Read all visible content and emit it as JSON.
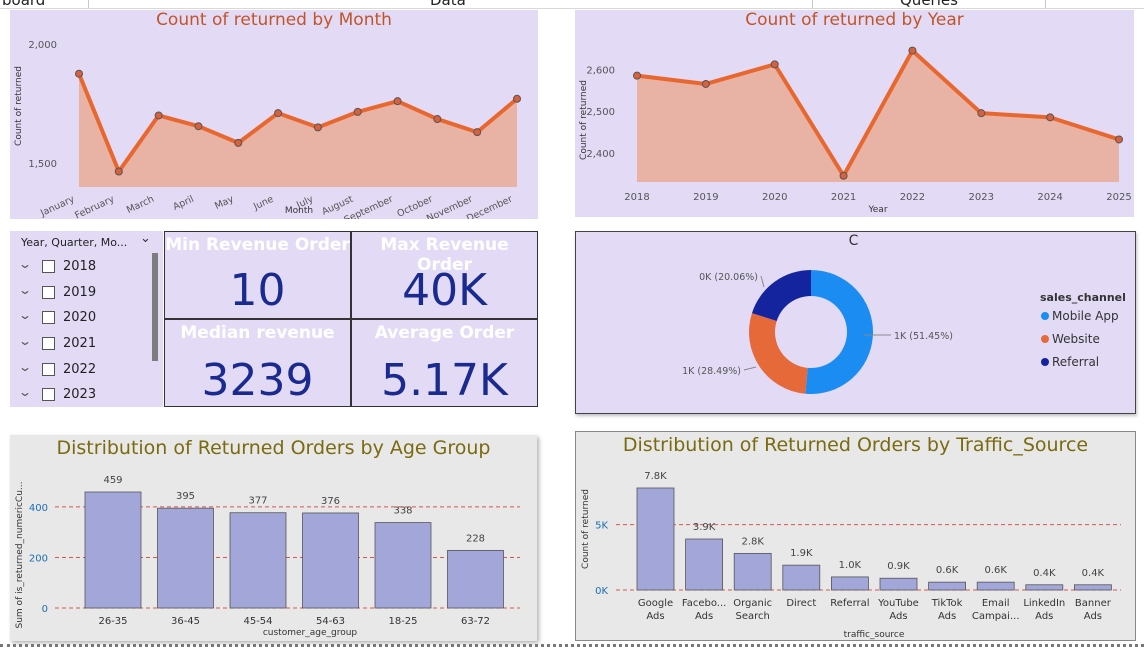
{
  "tabs": [
    "board",
    "Data",
    "Queries"
  ],
  "month_chart": {
    "title": "Count of returned by Month",
    "ylabel": "Count of returned",
    "xlabel": "Month",
    "yticks": [
      "2,000",
      "1,500"
    ]
  },
  "year_chart": {
    "title": "Count of returned by Year",
    "ylabel": "Count of returned",
    "xlabel": "Year",
    "yticks": [
      "2,600",
      "2,500",
      "2,400"
    ]
  },
  "slicer": {
    "header": "Year, Quarter, Mo...",
    "years": [
      "2018",
      "2019",
      "2020",
      "2021",
      "2022",
      "2023"
    ]
  },
  "kpis": {
    "min_label": "Min Revenue Order",
    "min_value": "10",
    "max_label": "Max Revenue Order",
    "max_value": "40K",
    "median_label": "Median revenue",
    "median_value": "3239",
    "avg_label": "Average Order",
    "avg_value": "5.17K"
  },
  "donut": {
    "title": "C",
    "legend_title": "sales_channel",
    "labels": [
      "1K (51.45%)",
      "1K (28.49%)",
      "0K (20.06%)"
    ]
  },
  "age_chart": {
    "title": "Distribution of Returned Orders by Age Group",
    "ylabel": "Sum of is_returned_numericCu...",
    "xlabel": "customer_age_group",
    "yticks": [
      "400",
      "200",
      "0"
    ]
  },
  "traffic_chart": {
    "title": "Distribution of Returned Orders by Traffic_Source",
    "ylabel": "Count of returned",
    "xlabel": "traffic_source",
    "yticks": [
      "5K",
      "0K"
    ]
  },
  "colors": {
    "line": "#e8672e",
    "area": "#e8b0a0",
    "bar": "#a2a6d9",
    "mobile": "#1a8cf2",
    "website": "#e6693a",
    "referral": "#14239e"
  },
  "chart_data": [
    {
      "type": "area",
      "title": "Count of returned by Month",
      "xlabel": "Month",
      "ylabel": "Count of returned",
      "categories": [
        "January",
        "February",
        "March",
        "April",
        "May",
        "June",
        "July",
        "August",
        "September",
        "October",
        "November",
        "December"
      ],
      "values": [
        1875,
        1465,
        1700,
        1655,
        1585,
        1710,
        1650,
        1715,
        1760,
        1685,
        1630,
        1770
      ],
      "ylim": [
        1400,
        2050
      ]
    },
    {
      "type": "area",
      "title": "Count of returned by Year",
      "xlabel": "Year",
      "ylabel": "Count of returned",
      "categories": [
        "2018",
        "2019",
        "2020",
        "2021",
        "2022",
        "2023",
        "2024",
        "2025"
      ],
      "values": [
        2585,
        2565,
        2612,
        2345,
        2645,
        2495,
        2485,
        2432
      ],
      "ylim": [
        2330,
        2680
      ]
    },
    {
      "type": "pie",
      "title": "C",
      "legend_title": "sales_channel",
      "categories": [
        "Mobile App",
        "Website",
        "Referral"
      ],
      "values": [
        51.45,
        28.49,
        20.06
      ],
      "data_labels": [
        "1K (51.45%)",
        "1K (28.49%)",
        "0K (20.06%)"
      ]
    },
    {
      "type": "bar",
      "title": "Distribution of Returned Orders by Age Group",
      "xlabel": "customer_age_group",
      "ylabel": "Sum of is_returned_numericCu...",
      "categories": [
        "26-35",
        "36-45",
        "45-54",
        "54-63",
        "18-25",
        "63-72"
      ],
      "values": [
        459,
        395,
        377,
        376,
        338,
        228
      ],
      "data_labels": [
        "459",
        "395",
        "377",
        "376",
        "338",
        "228"
      ],
      "ylim": [
        0,
        459
      ]
    },
    {
      "type": "bar",
      "title": "Distribution of Returned Orders by Traffic_Source",
      "xlabel": "traffic_source",
      "ylabel": "Count of returned",
      "categories": [
        [
          "Google",
          "Ads"
        ],
        [
          "Facebo...",
          "Ads"
        ],
        [
          "Organic",
          "Search"
        ],
        [
          "Direct"
        ],
        [
          "Referral"
        ],
        [
          "YouTube",
          "Ads"
        ],
        [
          "TikTok",
          "Ads"
        ],
        [
          "Email",
          "Campai..."
        ],
        [
          "LinkedIn",
          "Ads"
        ],
        [
          "Banner",
          "Ads"
        ]
      ],
      "values": [
        7800,
        3900,
        2800,
        1900,
        1000,
        900,
        600,
        600,
        400,
        400
      ],
      "data_labels": [
        "7.8K",
        "3.9K",
        "2.8K",
        "1.9K",
        "1.0K",
        "0.9K",
        "0.6K",
        "0.6K",
        "0.4K",
        "0.4K"
      ],
      "ylim": [
        0,
        7800
      ]
    }
  ]
}
